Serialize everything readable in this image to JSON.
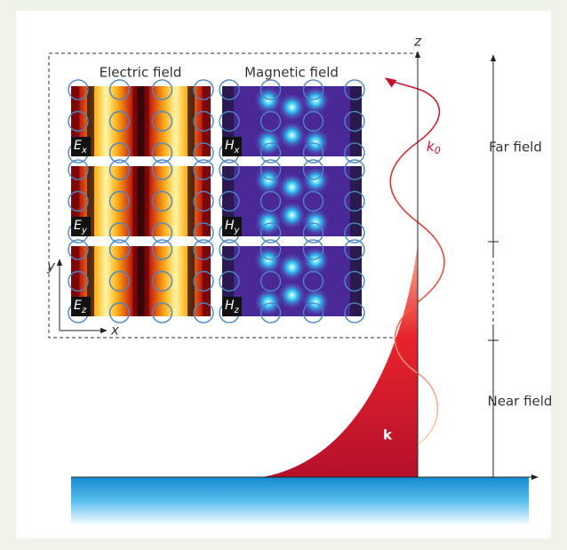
{
  "panels": {
    "electric_title": "Electric field",
    "magnetic_title": "Magnetic field",
    "electric": [
      {
        "symbol": "E",
        "subscript": "x"
      },
      {
        "symbol": "E",
        "subscript": "y"
      },
      {
        "symbol": "E",
        "subscript": "z"
      }
    ],
    "magnetic": [
      {
        "symbol": "H",
        "subscript": "x"
      },
      {
        "symbol": "H",
        "subscript": "y"
      },
      {
        "symbol": "H",
        "subscript": "z"
      }
    ]
  },
  "axes": {
    "z": "z",
    "y": "y",
    "x": "x"
  },
  "wave": {
    "symbol": "k",
    "subscript": "0"
  },
  "regions": {
    "far": "Far field",
    "near": "Near field"
  },
  "evanescent": "k"
}
